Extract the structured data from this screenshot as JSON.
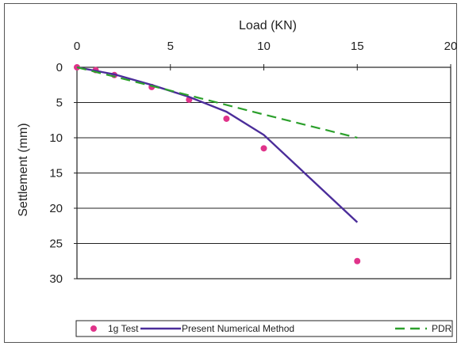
{
  "chart_data": {
    "type": "line",
    "title": "",
    "xlabel": "Load (KN)",
    "ylabel": "Settlement (mm)",
    "xlim": [
      0,
      20
    ],
    "ylim": [
      30,
      0
    ],
    "x_ticks": [
      0,
      5,
      10,
      15,
      20
    ],
    "y_ticks": [
      0,
      5,
      10,
      15,
      20,
      25,
      30
    ],
    "x_axis_position": "top",
    "y_axis_inverted": true,
    "grid": "horizontal",
    "legend_position": "bottom",
    "series": [
      {
        "name": "1g Test",
        "kind": "scatter",
        "color": "#e0338a",
        "points": [
          [
            0,
            0
          ],
          [
            1,
            0.4
          ],
          [
            2,
            1.1
          ],
          [
            4,
            2.8
          ],
          [
            6,
            4.6
          ],
          [
            8,
            7.3
          ],
          [
            10,
            11.5
          ],
          [
            15,
            27.5
          ]
        ]
      },
      {
        "name": "Present Numerical Method",
        "kind": "line",
        "color": "#4b2d9a",
        "points": [
          [
            0,
            0
          ],
          [
            2,
            1
          ],
          [
            4,
            2.5
          ],
          [
            6,
            4.2
          ],
          [
            8,
            6.3
          ],
          [
            10,
            9.6
          ],
          [
            15,
            22
          ]
        ]
      },
      {
        "name": "PDR",
        "kind": "dashed-line",
        "color": "#2ca02c",
        "points": [
          [
            0,
            0
          ],
          [
            5,
            3.3
          ],
          [
            10,
            6.7
          ],
          [
            15,
            10
          ]
        ]
      }
    ]
  }
}
